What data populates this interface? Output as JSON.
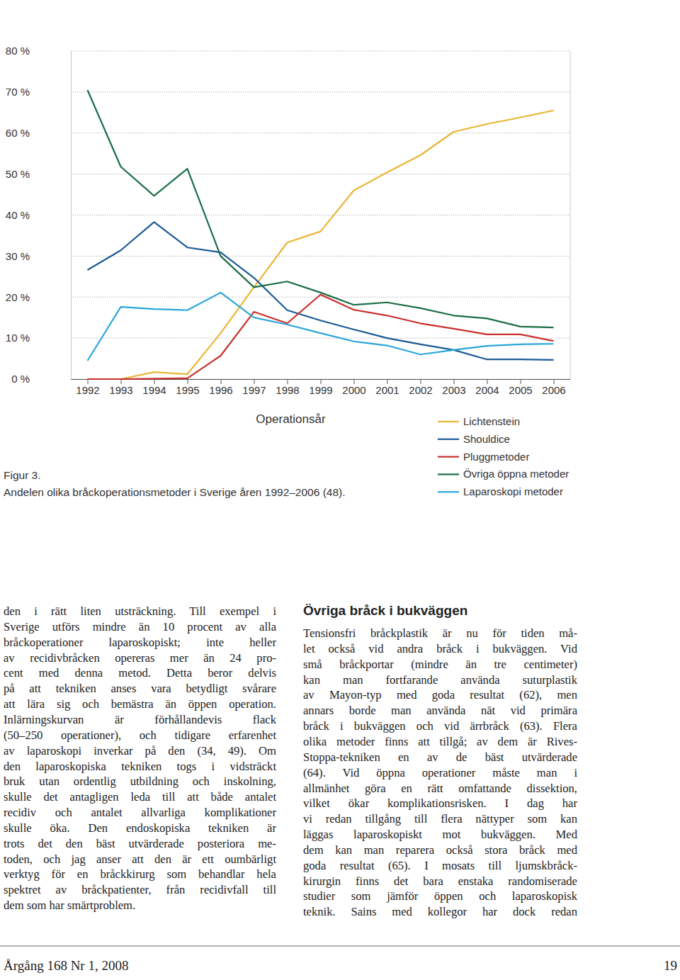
{
  "chart_data": {
    "type": "line",
    "x_label": "Operationsår",
    "categories": [
      "1992",
      "1993",
      "1994",
      "1995",
      "1996",
      "1997",
      "1998",
      "1999",
      "2000",
      "2001",
      "2002",
      "2003",
      "2004",
      "2005",
      "2006"
    ],
    "ylim": [
      0,
      80
    ],
    "yticks": [
      {
        "value": 0,
        "label": "0 %"
      },
      {
        "value": 10,
        "label": "10 %"
      },
      {
        "value": 20,
        "label": "20 %"
      },
      {
        "value": 30,
        "label": "30 %"
      },
      {
        "value": 40,
        "label": "40 %"
      },
      {
        "value": 50,
        "label": "50 %"
      },
      {
        "value": 60,
        "label": "60 %"
      },
      {
        "value": 70,
        "label": "70 %"
      },
      {
        "value": 80,
        "label": "80 %"
      }
    ],
    "grid": true,
    "legend": "bottom-right",
    "series": [
      {
        "name": "Lichtenstein",
        "color": "#e9b634",
        "values": [
          0,
          0,
          1.7,
          1.2,
          11.2,
          22.4,
          33.3,
          36,
          46,
          50.4,
          54.6,
          60.3,
          62.2,
          63.8,
          65.5
        ]
      },
      {
        "name": "Shouldice",
        "color": "#1a5a96",
        "values": [
          26.6,
          31.4,
          38.3,
          32.1,
          30.9,
          24.7,
          16.8,
          14.3,
          12.1,
          10,
          8.5,
          7.1,
          4.8,
          4.8,
          4.7
        ]
      },
      {
        "name": "Pluggmetoder",
        "color": "#c8302d",
        "values": [
          0,
          0,
          0.1,
          0.2,
          5.7,
          16.4,
          13.6,
          20.6,
          16.9,
          15.5,
          13.6,
          12.3,
          10.9,
          10.9,
          9.3
        ]
      },
      {
        "name": "Övriga öppna metoder",
        "color": "#1b6e45",
        "values": [
          70.5,
          51.8,
          44.7,
          51.3,
          30,
          22.4,
          23.8,
          21.1,
          18.1,
          18.7,
          17.3,
          15.5,
          14.8,
          12.8,
          12.6
        ]
      },
      {
        "name": "Laparoskopi metoder",
        "color": "#2aa6d9",
        "values": [
          4.5,
          17.6,
          17.1,
          16.8,
          21.1,
          15,
          13.3,
          11.2,
          9.2,
          8.2,
          6,
          7.1,
          8.1,
          8.5,
          8.6
        ]
      }
    ]
  },
  "caption": {
    "label": "Figur 3.",
    "text": "Andelen olika bråckoperationsmetoder i Sverige åren 1992–2006 (48)."
  },
  "article": {
    "left_column": [
      "den i rätt liten utsträckning. Till exempel i",
      "Sverige utförs mindre än 10 procent av alla",
      "bråckoperationer laparoskopiskt; inte heller",
      "av recidivbråcken opereras mer än 24 pro-",
      "cent med denna metod. Detta beror delvis",
      "på att tekniken anses vara betydligt svårare",
      "att lära sig och bemästra än öppen operation.",
      "Inlärningskurvan är förhållandevis flack",
      "(50–250 operationer), och tidigare erfarenhet",
      "av laparoskopi inverkar på den (34, 49). Om",
      "den laparoskopiska tekniken togs i vidsträckt",
      "bruk utan ordentlig utbildning och inskolning,",
      "skulle det antagligen leda till att både antalet",
      "recidiv och antalet allvarliga komplikationer",
      "skulle öka. Den endoskopiska tekniken är",
      "trots det den bäst utvärderade posteriora me-",
      "toden, och jag anser att den är ett oumbärligt",
      "verktyg för en bråckkirurg som behandlar hela",
      "spektret av bråckpatienter, från recidivfall till",
      "dem som har smärtproblem."
    ],
    "right_column": {
      "heading": "Övriga bråck i bukväggen",
      "lines": [
        "Tensionsfri bråckplastik är nu för tiden må-",
        "let också vid andra bråck i bukväggen. Vid",
        "små bråckportar (mindre än tre centimeter)",
        "kan man fortfarande använda suturplastik",
        "av Mayon-typ med goda resultat (62), men",
        "annars borde man använda nät vid primära",
        "bråck i bukväggen och vid ärrbråck (63). Flera",
        "olika metoder finns att tillgå; av dem är Rives-",
        "Stoppa-tekniken en av de bäst utvärderade",
        "(64). Vid öppna operationer måste man i",
        "allmänhet göra en rätt omfattande dissektion,",
        "vilket ökar komplikationsrisken. I dag har",
        "vi redan tillgång till flera nättyper som kan",
        "läggas laparoskopiskt mot bukväggen. Med",
        "dem kan man reparera också stora bråck med",
        "goda resultat (65). I mosats till ljumskbråck-",
        "kirurgin finns det bara enstaka randomiserade",
        "studier som jämför öppen och laparoskopisk",
        "teknik. Sains med kollegor har dock redan"
      ]
    }
  },
  "footer": {
    "issue": "Årgång 168 Nr 1, 2008",
    "page": "19"
  }
}
